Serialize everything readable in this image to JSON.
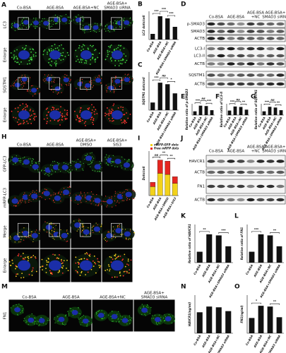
{
  "panels": {
    "A": {
      "letter": "A",
      "columns": [
        [
          "Co-BSA"
        ],
        [
          "AGE-BSA"
        ],
        [
          "AGE-BSA+NC"
        ],
        [
          "AGE-BSA+",
          "SMAD3 siRNA"
        ]
      ],
      "rows": [
        "LC3",
        "Enlarge",
        "SQSTM1",
        "Enlarge"
      ],
      "row_colors": [
        "#2a9d2a",
        "#222",
        "#d22",
        "#222"
      ]
    },
    "B": {
      "letter": "B",
      "ylabel": "LC3 dots/cell",
      "categories": [
        "Co-BSA",
        "AGE-BSA",
        "AGE-BSA+NC",
        "AGE-BSA+SMAD3 siRNA"
      ],
      "values": [
        8,
        33,
        30,
        18
      ],
      "ylim": [
        0,
        40
      ],
      "color": "#111",
      "sig": [
        "***",
        "***",
        "***"
      ]
    },
    "C": {
      "letter": "C",
      "ylabel": "SQSTM1 dots/cell",
      "categories": [
        "Co-BSA",
        "AGE-BSA",
        "AGE-BSA+NC",
        "AGE-BSA+SMAD3 siRNA"
      ],
      "values": [
        5,
        18,
        17,
        11
      ],
      "ylim": [
        0,
        25
      ],
      "color": "#111",
      "sig": [
        "***",
        "ns",
        "*"
      ]
    },
    "D": {
      "letter": "D",
      "columns": [
        [
          "Co-BSA"
        ],
        [
          "AGE-BSA"
        ],
        [
          "AGE-BSA",
          "+NC"
        ],
        [
          "AGE-BSA+",
          "SMAD3 siRNA"
        ]
      ],
      "rows": [
        "p-SMAD3",
        "SMAD3",
        "ACTB",
        "LC3-I",
        "LC3-II",
        "ACTB",
        "SQSTM1",
        "ACTB"
      ]
    },
    "E": {
      "letter": "E",
      "ylabel": "Relative ratio of p-SMAD3",
      "categories": [
        "Co-BSA",
        "AGE-BSA",
        "AGE-BSA+NC",
        "AGE-BSA+SMAD3 siRNA"
      ],
      "values": [
        1,
        2.5,
        2.4,
        1.3
      ],
      "ylim": [
        0,
        3
      ],
      "color": "#111",
      "sig": [
        "***",
        "ns",
        "***"
      ]
    },
    "F": {
      "letter": "F",
      "ylabel": "Relative ratio of LC3-II",
      "categories": [
        "Co-BSA",
        "AGE-BSA",
        "AGE-BSA+NC",
        "AGE-BSA+SMAD3 siRNA"
      ],
      "values": [
        1,
        1.9,
        1.8,
        1.2
      ],
      "ylim": [
        0,
        2.5
      ],
      "color": "#111",
      "sig": [
        "***",
        "ns",
        "**"
      ]
    },
    "G": {
      "letter": "G",
      "ylabel": "Relative ratio of SQSTM1",
      "categories": [
        "Co-BSA",
        "AGE-BSA",
        "AGE-BSA+NC",
        "AGE-BSA+SMAD3 siRNA"
      ],
      "values": [
        1,
        2.2,
        2.0,
        1.3
      ],
      "ylim": [
        0,
        3
      ],
      "color": "#111",
      "sig": [
        "***",
        "ns",
        "**"
      ]
    },
    "H": {
      "letter": "H",
      "columns": [
        [
          "Co-BSA"
        ],
        [
          "AGE-BSA"
        ],
        [
          "AGE-BSA+",
          "DMSO"
        ],
        [
          "AGE-BSA+",
          "SIS3"
        ]
      ],
      "rows": [
        "GFP-LC3",
        "mRFP-LC3",
        "Merge",
        "Enlarge"
      ],
      "row_colors": [
        "#2a9d2a",
        "#d22",
        "#222",
        "#222"
      ]
    },
    "I": {
      "letter": "I",
      "ylabel": "Dots/cell",
      "categories": [
        "Co-BSA",
        "AGE-BSA",
        "AGE-BSA+DMSO",
        "AGE-BSA+SIS3"
      ],
      "series": [
        {
          "name": "mRFP-GFP dots",
          "color": "#f2d21b",
          "values": [
            8,
            20,
            19,
            11
          ]
        },
        {
          "name": "Free mRFP dots",
          "color": "#e5261f",
          "values": [
            4,
            12,
            12,
            6
          ]
        }
      ],
      "ylim": [
        0,
        40
      ],
      "sig": [
        "ns",
        "**",
        "**"
      ]
    },
    "J": {
      "letter": "J",
      "columns": [
        [
          "Co-BSA"
        ],
        [
          "AGE-BSA"
        ],
        [
          "AGE-BSA",
          "+NC"
        ],
        [
          "AGE-BSA+",
          "SMAD3 siRNA"
        ]
      ],
      "rows": [
        "HAVCR1",
        "ACTB",
        "FN1",
        "ACTB"
      ]
    },
    "K": {
      "letter": "K",
      "ylabel": "Relative ratio of HAVCR1",
      "categories": [
        "Co-BSA",
        "AGE-BSA",
        "AGE-BSA+NC",
        "AGE-BSA+SMAD3 siRNA"
      ],
      "values": [
        1,
        2.6,
        2.5,
        1.5
      ],
      "ylim": [
        0,
        3.5
      ],
      "color": "#111",
      "sig": [
        "**",
        "***"
      ]
    },
    "L": {
      "letter": "L",
      "ylabel": "Relative ratio of FN1",
      "categories": [
        "Co-BSA",
        "AGE-BSA",
        "AGE-BSA+NC",
        "AGE-BSA+SMAD3 siRNA"
      ],
      "values": [
        1,
        2.6,
        2.5,
        1.5
      ],
      "ylim": [
        0,
        3.5
      ],
      "color": "#111",
      "sig": [
        "***",
        "**"
      ]
    },
    "M": {
      "letter": "M",
      "columns": [
        [
          "Co-BSA"
        ],
        [
          "AGE-BSA"
        ],
        [
          "AGE-BSA+NC"
        ],
        [
          "AGE-BSA+",
          "SMAD3 siRNA"
        ]
      ],
      "rows": [
        "FN1"
      ],
      "row_colors": [
        "#2a9d2a"
      ]
    },
    "N": {
      "letter": "N",
      "ylabel": "HAVCR1(ng/ml)",
      "categories": [
        "Co-BSA",
        "AGE-BSA",
        "AGE-BSA+NC",
        "AGE-BSA+SMAD3 siRNA"
      ],
      "values": [
        55,
        70,
        68,
        58
      ],
      "ylim": [
        0,
        100
      ],
      "color": "#111",
      "sig": []
    },
    "O": {
      "letter": "O",
      "ylabel": "FN1(ng/ml)",
      "categories": [
        "Co-BSA",
        "AGE-BSA",
        "AGE-BSA+NC",
        "AGE-BSA+SMAD3 siRNA"
      ],
      "values": [
        40,
        72,
        70,
        42
      ],
      "ylim": [
        0,
        100
      ],
      "color": "#111",
      "sig": [
        "*",
        "**"
      ]
    }
  }
}
